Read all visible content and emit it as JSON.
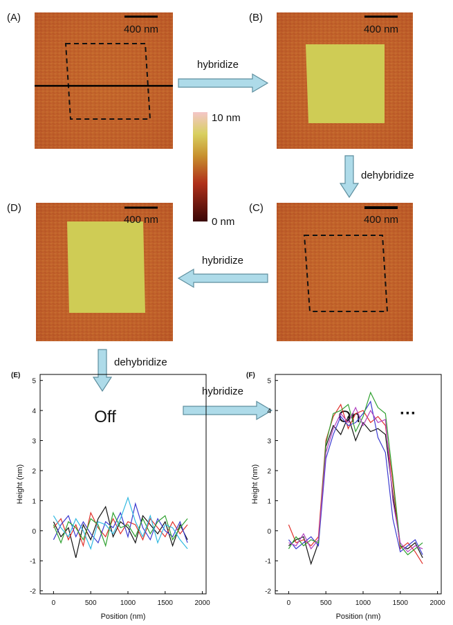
{
  "figure": {
    "panels": [
      {
        "label": "(A)",
        "scale": "400 nm"
      },
      {
        "label": "(B)",
        "scale": "400 nm"
      },
      {
        "label": "(C)",
        "scale": "400 nm"
      },
      {
        "label": "(D)",
        "scale": "400 nm"
      }
    ],
    "arrows": [
      "hybridize",
      "dehybridize",
      "hybridize",
      "dehybridize",
      "hybridize"
    ],
    "colorbar": {
      "max": "10 nm",
      "min": "0 nm"
    },
    "states": [
      "Off",
      "On",
      "···"
    ]
  },
  "chart_data": [
    {
      "type": "line",
      "title": "(E)",
      "xlabel": "Position (nm)",
      "ylabel": "Height (nm)",
      "xlim": [
        -180,
        2050
      ],
      "ylim": [
        -2.1,
        5.2
      ],
      "xticks": [
        0,
        500,
        1000,
        1500,
        2000
      ],
      "yticks": [
        -2,
        -1,
        0,
        1,
        2,
        3,
        4,
        5
      ],
      "x": [
        0,
        100,
        200,
        300,
        400,
        500,
        600,
        700,
        800,
        900,
        1000,
        1100,
        1200,
        1300,
        1400,
        1500,
        1600,
        1700,
        1800
      ],
      "series": [
        {
          "color": "#111111",
          "values": [
            0.3,
            -0.2,
            0.1,
            -0.9,
            0.2,
            -0.3,
            0.4,
            0.8,
            -0.2,
            0.3,
            0.1,
            -0.4,
            0.5,
            0.2,
            -0.1,
            0.3,
            -0.5,
            0.2,
            -0.3
          ]
        },
        {
          "color": "#e0302a",
          "values": [
            0.1,
            0.4,
            -0.3,
            0.2,
            -0.5,
            0.6,
            0.1,
            -0.2,
            0.4,
            -0.1,
            0.3,
            0.2,
            -0.3,
            0.4,
            0.1,
            -0.2,
            0.3,
            -0.1,
            0.2
          ]
        },
        {
          "color": "#3a3ad0",
          "values": [
            -0.3,
            0.2,
            0.5,
            -0.2,
            0.3,
            -0.1,
            -0.4,
            0.3,
            0.1,
            0.6,
            -0.2,
            0.9,
            0.1,
            -0.3,
            0.4,
            0.0,
            -0.2,
            0.3,
            -0.4
          ]
        },
        {
          "color": "#2ea02e",
          "values": [
            0.2,
            -0.4,
            0.3,
            0.1,
            -0.3,
            0.4,
            0.2,
            -0.5,
            0.6,
            0.1,
            0.2,
            -0.2,
            0.4,
            -0.1,
            0.3,
            0.5,
            -0.3,
            0.1,
            0.4
          ]
        },
        {
          "color": "#30b8e0",
          "values": [
            0.5,
            0.1,
            -0.2,
            0.4,
            0.0,
            -0.6,
            0.3,
            0.2,
            -0.1,
            0.4,
            1.1,
            0.3,
            -0.2,
            0.5,
            -0.4,
            0.2,
            0.1,
            -0.3,
            -0.6
          ]
        }
      ]
    },
    {
      "type": "line",
      "title": "(F)",
      "xlabel": "Position (nm)",
      "ylabel": "Height (nm)",
      "xlim": [
        -180,
        2050
      ],
      "ylim": [
        -2.1,
        5.2
      ],
      "xticks": [
        0,
        500,
        1000,
        1500,
        2000
      ],
      "yticks": [
        -2,
        -1,
        0,
        1,
        2,
        3,
        4,
        5
      ],
      "x": [
        0,
        100,
        200,
        300,
        400,
        500,
        600,
        700,
        800,
        900,
        1000,
        1100,
        1200,
        1300,
        1400,
        1500,
        1600,
        1700,
        1800
      ],
      "series": [
        {
          "color": "#111111",
          "values": [
            -0.5,
            -0.3,
            -0.2,
            -1.1,
            -0.4,
            2.8,
            3.5,
            3.2,
            3.8,
            3.0,
            3.6,
            3.3,
            3.4,
            3.2,
            1.2,
            -0.5,
            -0.6,
            -0.4,
            -0.9
          ]
        },
        {
          "color": "#e0302a",
          "values": [
            0.2,
            -0.4,
            -0.3,
            -0.5,
            -0.2,
            3.0,
            3.8,
            4.2,
            3.4,
            3.9,
            4.0,
            3.6,
            3.8,
            3.5,
            1.6,
            -0.6,
            -0.4,
            -0.7,
            -1.1
          ]
        },
        {
          "color": "#3a3ad0",
          "values": [
            -0.3,
            -0.6,
            -0.4,
            -0.2,
            -0.5,
            2.4,
            3.2,
            3.8,
            3.5,
            3.6,
            3.9,
            4.3,
            3.1,
            2.6,
            0.4,
            -0.7,
            -0.5,
            -0.3,
            -0.8
          ]
        },
        {
          "color": "#2ea02e",
          "values": [
            -0.6,
            -0.2,
            -0.5,
            -0.3,
            -0.4,
            2.9,
            3.9,
            4.0,
            4.2,
            3.3,
            3.8,
            4.6,
            4.1,
            3.9,
            1.8,
            -0.5,
            -0.8,
            -0.6,
            -0.4
          ]
        },
        {
          "color": "#b040c0",
          "values": [
            -0.4,
            -0.5,
            -0.1,
            -0.6,
            -0.3,
            2.6,
            3.4,
            3.9,
            3.6,
            4.1,
            3.5,
            4.0,
            3.6,
            3.7,
            1.0,
            -0.4,
            -0.7,
            -0.5,
            -0.6
          ]
        }
      ]
    }
  ]
}
